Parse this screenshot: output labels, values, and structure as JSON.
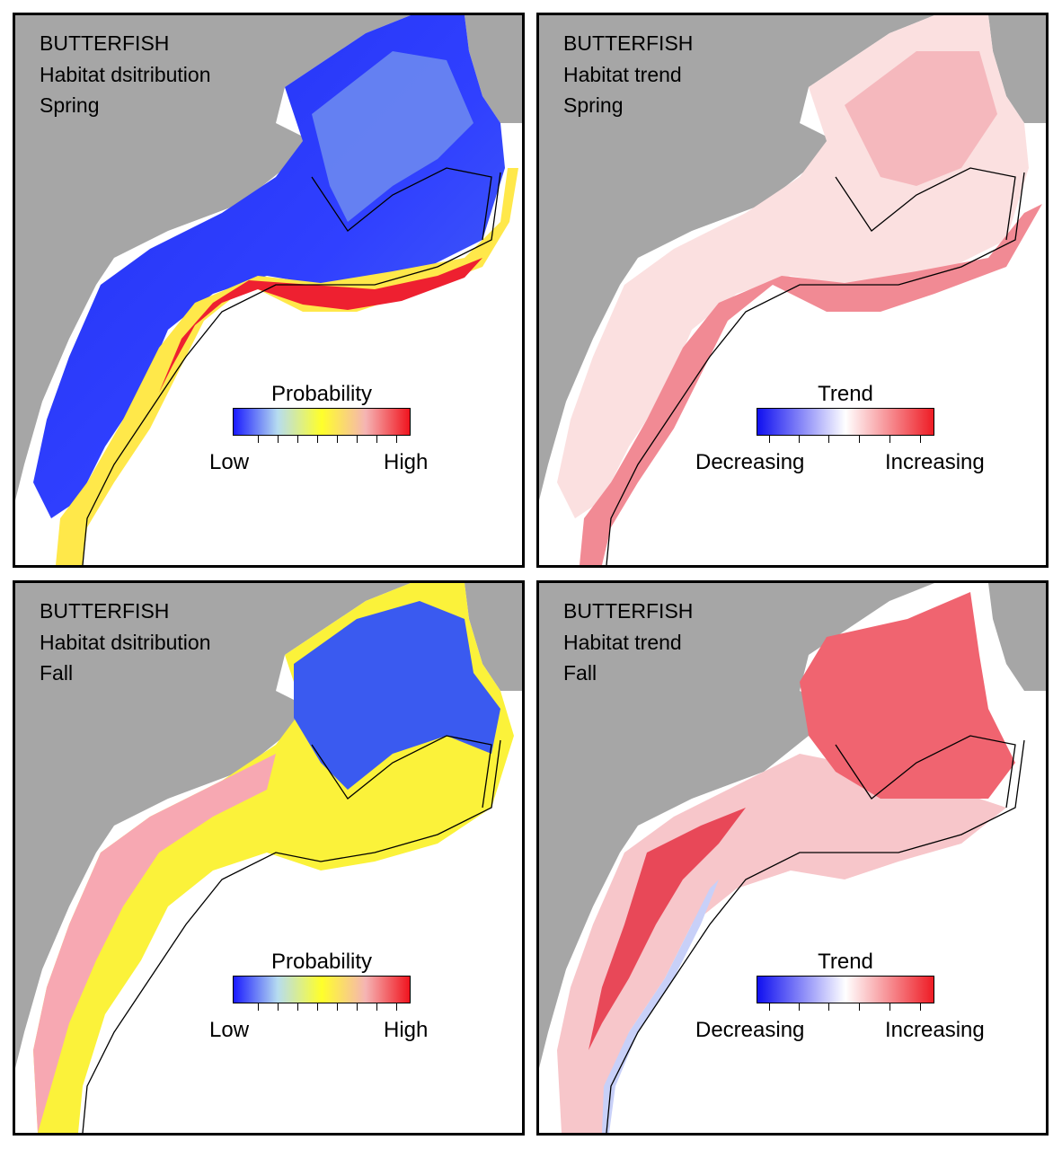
{
  "panels": [
    {
      "id": "spring-distribution",
      "species": "BUTTERFISH",
      "metric": "Habitat dsitribution",
      "season": "Spring",
      "legend": {
        "title": "Probability",
        "low": "Low",
        "high": "High",
        "scale": "probability"
      }
    },
    {
      "id": "spring-trend",
      "species": "BUTTERFISH",
      "metric": "Habitat trend",
      "season": "Spring",
      "legend": {
        "title": "Trend",
        "low": "Decreasing",
        "high": "Increasing",
        "scale": "trend"
      }
    },
    {
      "id": "fall-distribution",
      "species": "BUTTERFISH",
      "metric": "Habitat dsitribution",
      "season": "Fall",
      "legend": {
        "title": "Probability",
        "low": "Low",
        "high": "High",
        "scale": "probability"
      }
    },
    {
      "id": "fall-trend",
      "species": "BUTTERFISH",
      "metric": "Habitat trend",
      "season": "Fall",
      "legend": {
        "title": "Trend",
        "low": "Decreasing",
        "high": "Increasing",
        "scale": "trend"
      }
    }
  ],
  "colors": {
    "land": "#a6a6a6",
    "ocean": "#ffffff",
    "probability_scale": [
      "#1a1aff",
      "#b6dcf0",
      "#ffff2a",
      "#f5b4b4",
      "#f0141e"
    ],
    "trend_scale": [
      "#1010f0",
      "#ffffff",
      "#ee1c25"
    ]
  }
}
